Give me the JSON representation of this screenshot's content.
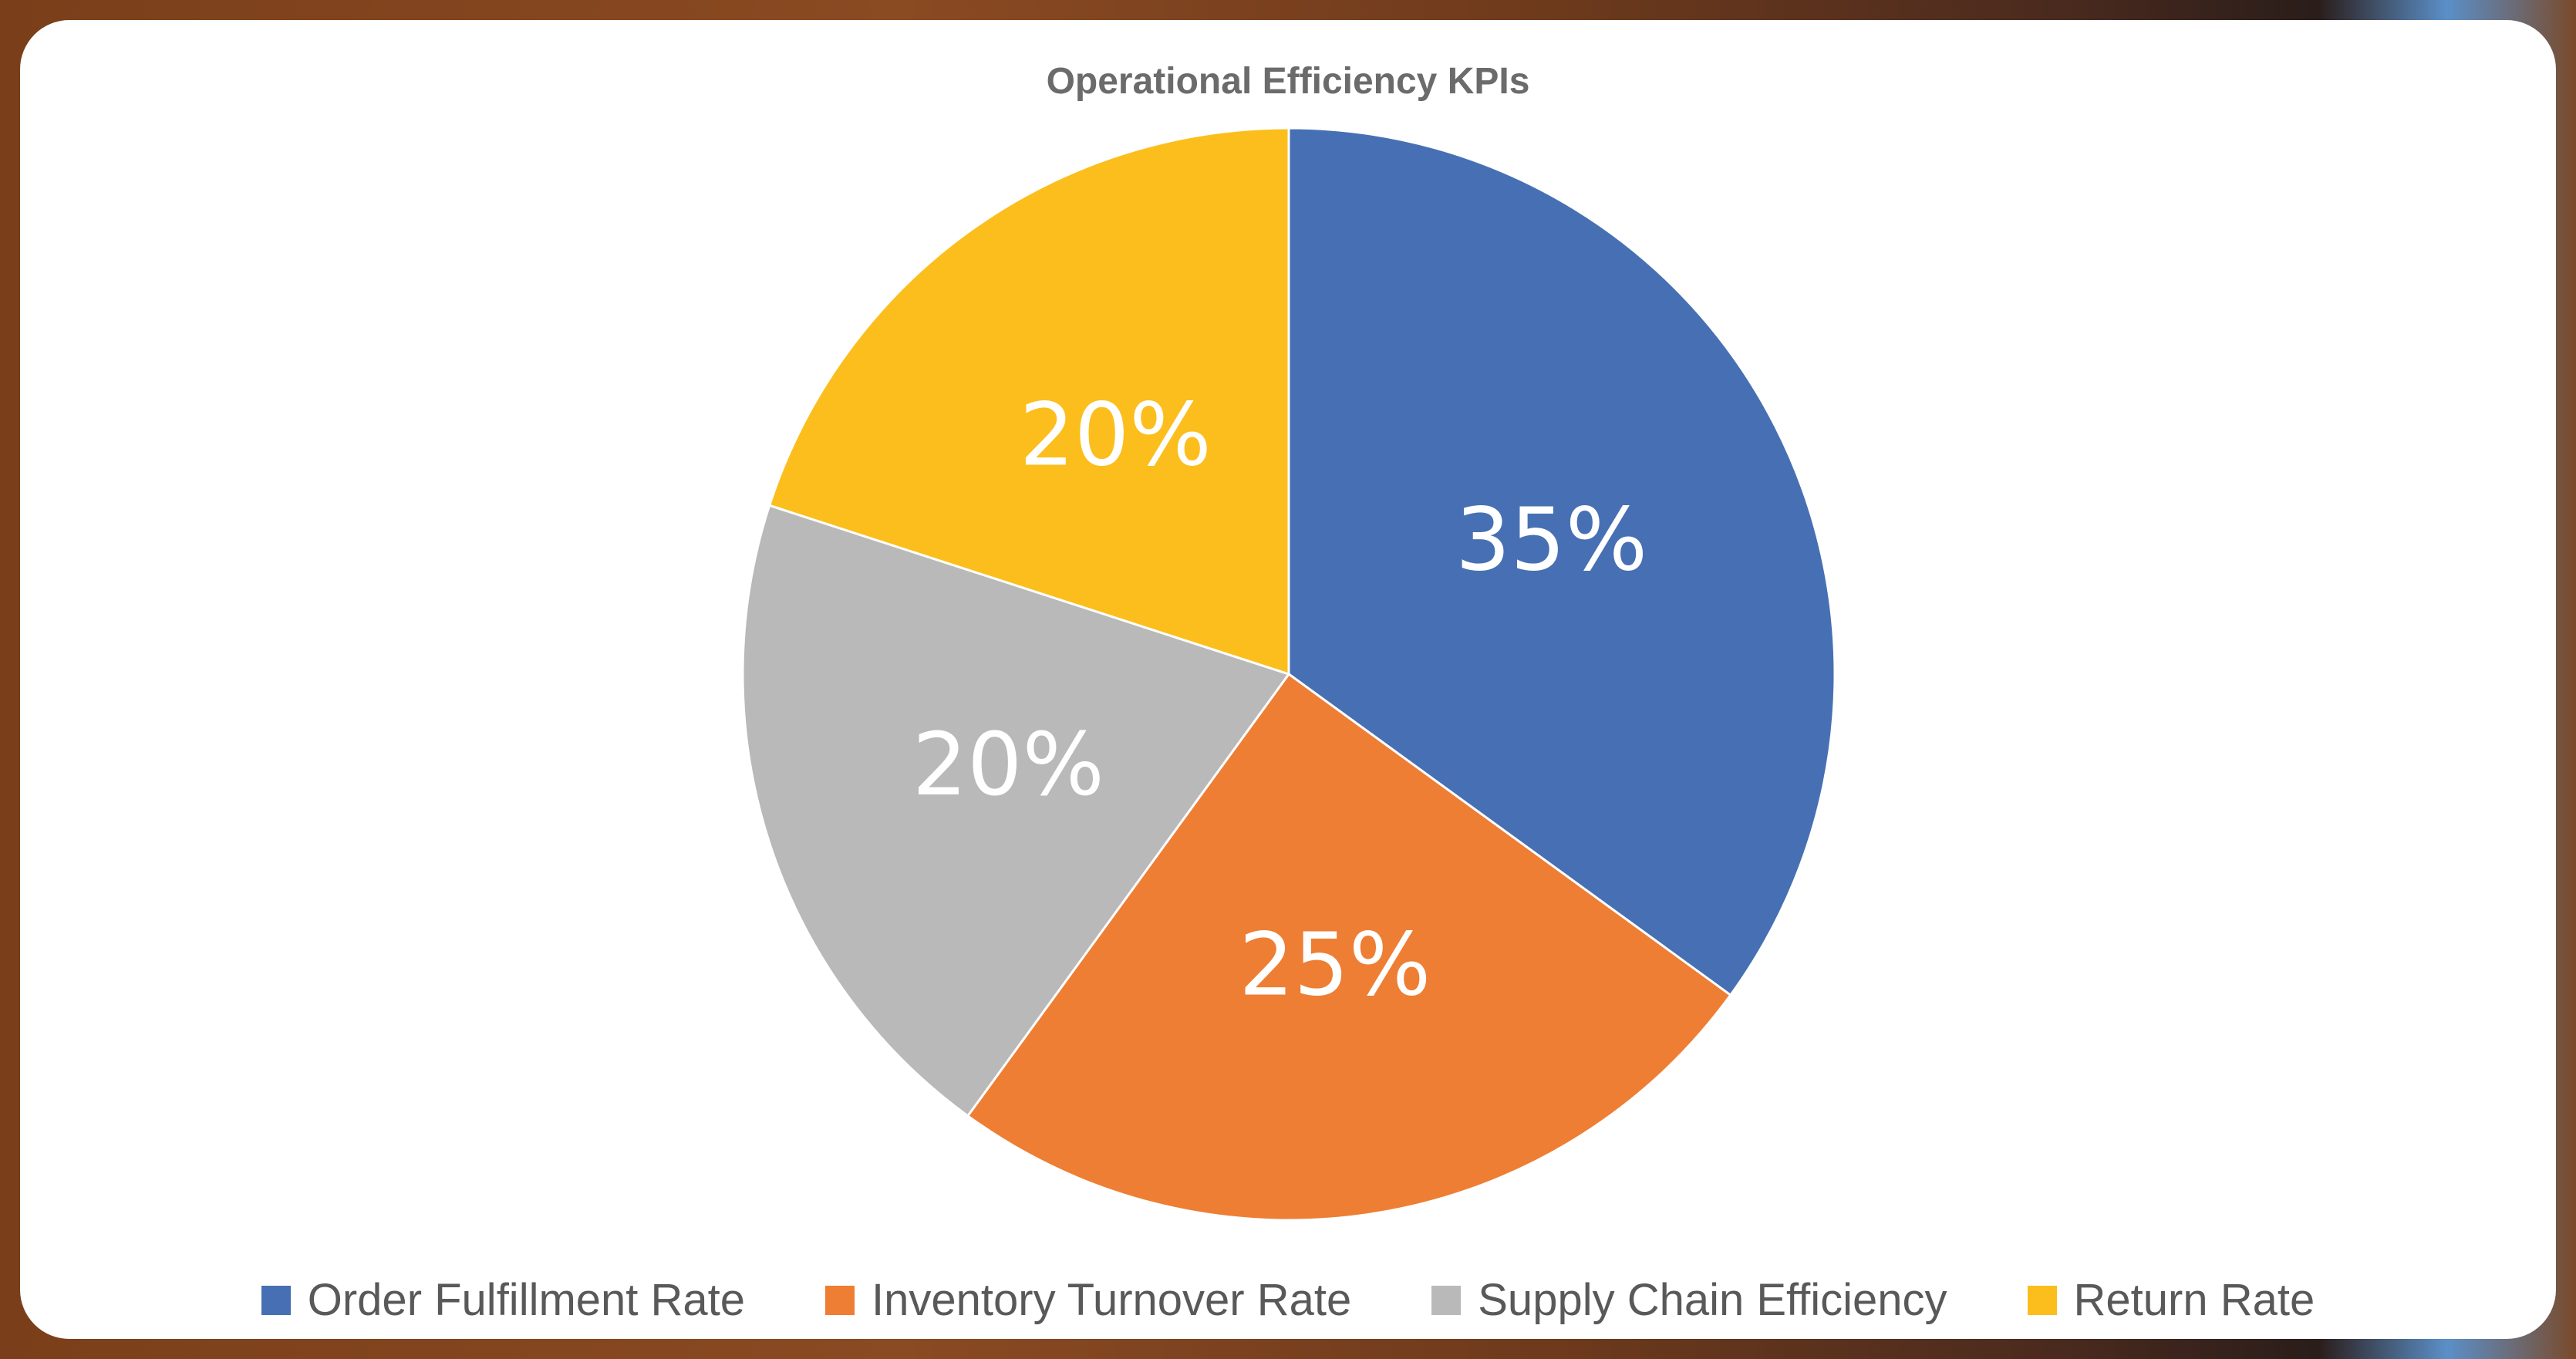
{
  "chart_data": {
    "type": "pie",
    "title": "Operational Efficiency KPIs",
    "categories": [
      "Order Fulfillment Rate",
      "Inventory Turnover Rate",
      "Supply Chain Efficiency",
      "Return Rate"
    ],
    "values": [
      35,
      25,
      20,
      20
    ],
    "data_labels": [
      "35%",
      "25%",
      "20%",
      "20%"
    ],
    "colors": [
      "#4670b3",
      "#ee7e33",
      "#b9b9b9",
      "#fbbe1c"
    ],
    "start_angle_deg": 0,
    "direction": "clockwise",
    "legend_position": "bottom"
  }
}
